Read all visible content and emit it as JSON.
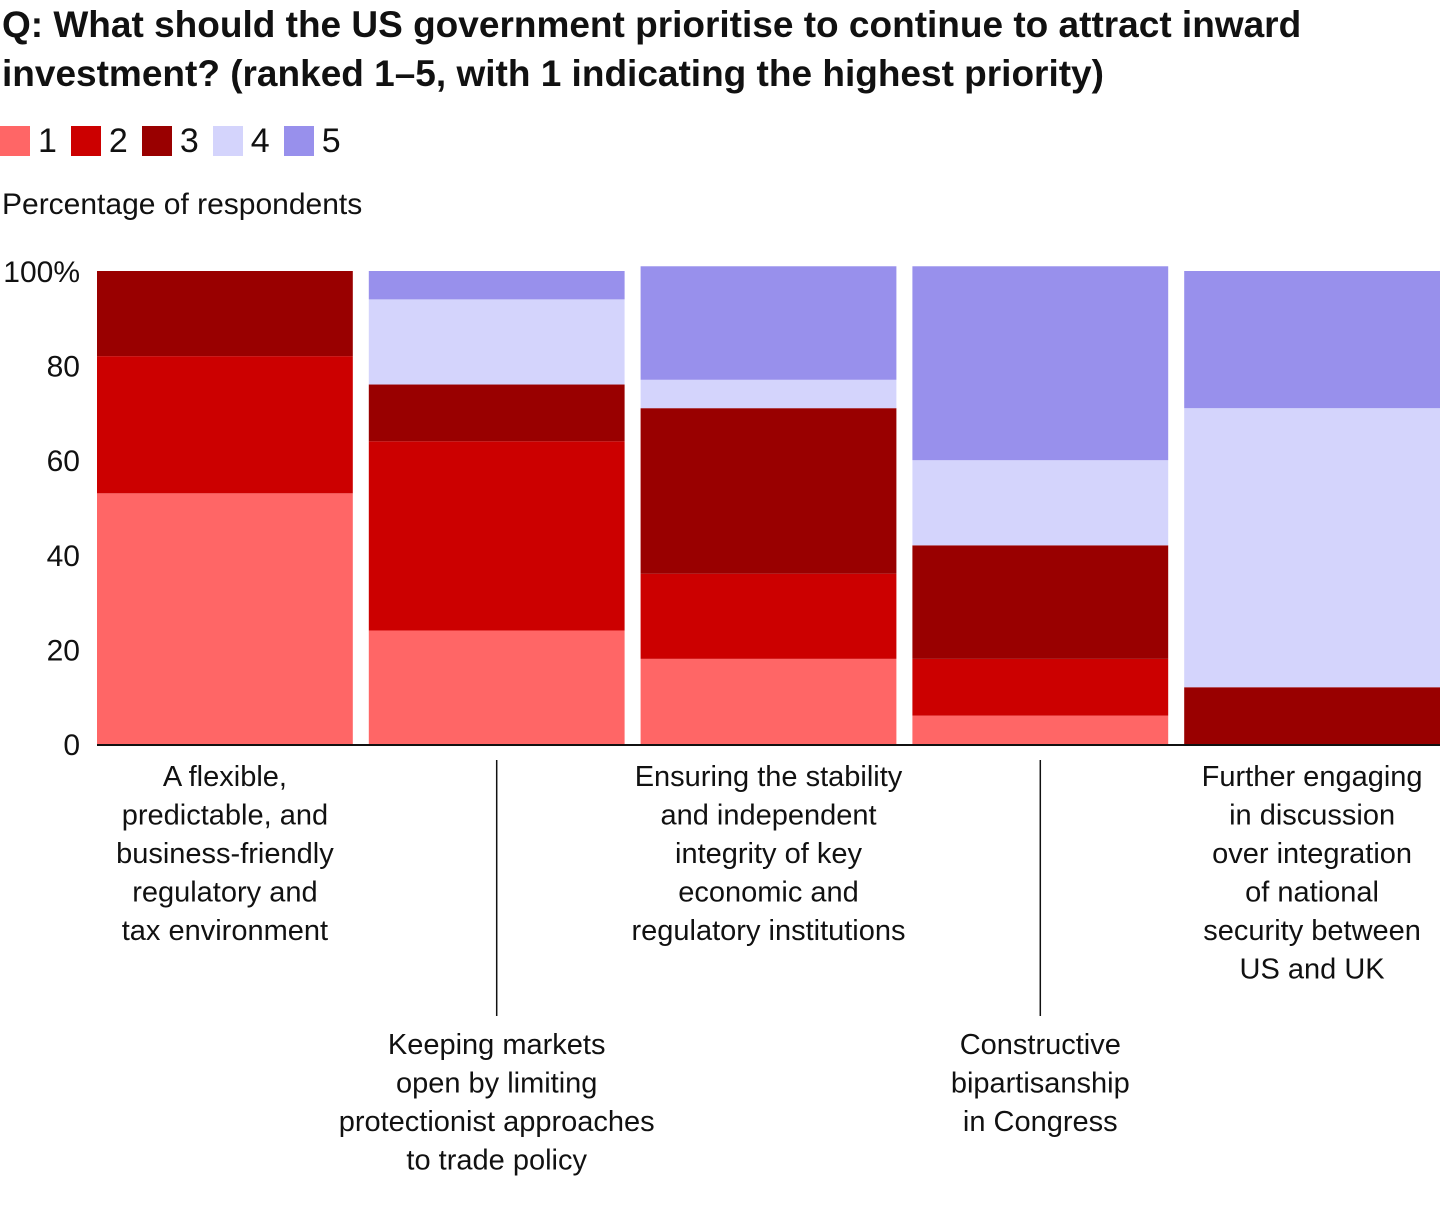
{
  "chart_data": {
    "type": "bar",
    "stacked": true,
    "title": "Q: What should the US government prioritise to continue to attract inward investment? (ranked 1–5, with 1 indicating the highest priority)",
    "ylabel": "Percentage of respondents",
    "ylim": [
      0,
      100
    ],
    "yticks": [
      "0",
      "20",
      "40",
      "60",
      "80",
      "100%"
    ],
    "ytick_values": [
      0,
      20,
      40,
      60,
      80,
      100
    ],
    "legend_position": "top-left",
    "categories": [
      [
        "A flexible,",
        "predictable, and",
        "business-friendly",
        "regulatory and",
        "tax environment"
      ],
      [
        "Keeping markets",
        "open by limiting",
        "protectionist approaches",
        "to trade policy"
      ],
      [
        "Ensuring the stability",
        "and independent",
        "integrity of key",
        "economic and",
        "regulatory institutions"
      ],
      [
        "Constructive",
        "bipartisanship",
        "in Congress"
      ],
      [
        "Further engaging",
        "in discussion",
        "over integration",
        "of national",
        "security between",
        "US and UK"
      ]
    ],
    "series": [
      {
        "name": "1",
        "color": "#ff6666",
        "values": [
          53,
          24,
          18,
          6,
          0
        ]
      },
      {
        "name": "2",
        "color": "#cc0000",
        "values": [
          29,
          40,
          18,
          12,
          0
        ]
      },
      {
        "name": "3",
        "color": "#990000",
        "values": [
          18,
          12,
          35,
          24,
          12
        ]
      },
      {
        "name": "4",
        "color": "#d4d4fc",
        "values": [
          0,
          18,
          6,
          18,
          59
        ]
      },
      {
        "name": "5",
        "color": "#9890ec",
        "values": [
          0,
          6,
          24,
          41,
          29
        ]
      }
    ]
  }
}
